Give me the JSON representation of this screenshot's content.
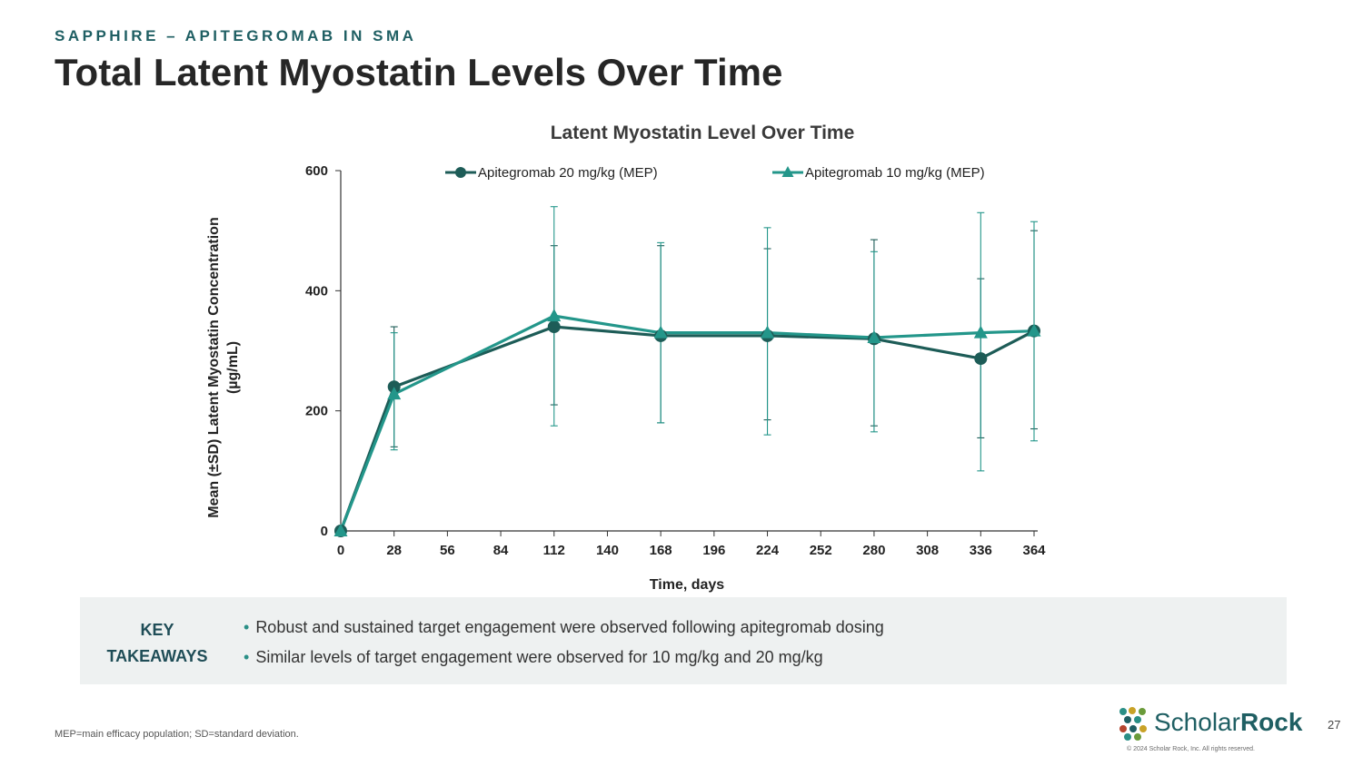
{
  "header": {
    "eyebrow": "SAPPHIRE – APITEGROMAB IN SMA",
    "title": "Total Latent Myostatin Levels Over Time"
  },
  "chart_data": {
    "type": "line",
    "title": "Latent Myostatin Level Over Time",
    "xlabel": "Time, days",
    "ylabel_line1": "Mean (±SD) Latent Myostatin Concentration",
    "ylabel_line2": "(µg/mL)",
    "x": [
      0,
      28,
      112,
      168,
      224,
      280,
      336,
      364
    ],
    "xticks": [
      0,
      28,
      56,
      84,
      112,
      140,
      168,
      196,
      224,
      252,
      280,
      308,
      336,
      364
    ],
    "yticks": [
      0,
      200,
      400,
      600
    ],
    "xlim": [
      0,
      364
    ],
    "ylim": [
      0,
      600
    ],
    "grid": false,
    "legend_position": "top",
    "series": [
      {
        "name": "Apitegromab 20 mg/kg (MEP)",
        "color": "#1d5c57",
        "marker": "circle",
        "values": [
          0,
          240,
          340,
          325,
          325,
          320,
          287,
          333
        ],
        "sd_upper": [
          0,
          340,
          475,
          475,
          470,
          485,
          420,
          500
        ],
        "sd_lower": [
          0,
          140,
          210,
          180,
          185,
          175,
          155,
          170
        ]
      },
      {
        "name": "Apitegromab 10 mg/kg (MEP)",
        "color": "#23968a",
        "marker": "triangle",
        "values": [
          0,
          228,
          358,
          330,
          330,
          322,
          330,
          333
        ],
        "sd_upper": [
          0,
          330,
          540,
          480,
          505,
          465,
          530,
          515
        ],
        "sd_lower": [
          0,
          135,
          175,
          180,
          160,
          165,
          100,
          150
        ]
      }
    ]
  },
  "takeaways": {
    "label_line1": "KEY",
    "label_line2": "TAKEAWAYS",
    "items": [
      "Robust and sustained target engagement were observed following apitegromab dosing",
      "Similar levels of target engagement were observed for 10 mg/kg and 20 mg/kg"
    ]
  },
  "footnote": "MEP=main efficacy population; SD=standard deviation.",
  "logo": {
    "name_light": "Scholar",
    "name_bold": "Rock",
    "copyright": "© 2024 Scholar Rock, Inc. All rights reserved."
  },
  "page_number": "27",
  "colors": {
    "accent": "#1f5f63",
    "teal": "#23968a",
    "dark_teal": "#1d5c57"
  }
}
